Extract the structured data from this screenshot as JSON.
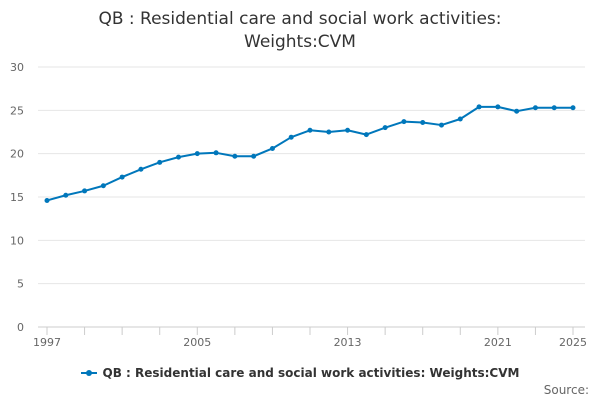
{
  "chart_data": {
    "type": "line",
    "title_lines": [
      "QB : Residential care and social work activities:",
      "Weights:CVM"
    ],
    "x": [
      1997,
      1998,
      1999,
      2000,
      2001,
      2002,
      2003,
      2004,
      2005,
      2006,
      2007,
      2008,
      2009,
      2010,
      2011,
      2012,
      2013,
      2014,
      2015,
      2016,
      2017,
      2018,
      2019,
      2020,
      2021,
      2022,
      2023,
      2024,
      2025
    ],
    "x_tick_labels": [
      "1997",
      "2005",
      "2013",
      "2021",
      "2025"
    ],
    "x_tick_values": [
      1997,
      2005,
      2013,
      2021,
      2025
    ],
    "series": [
      {
        "name": "QB : Residential care and social work activities: Weights:CVM",
        "color": "#0077bb",
        "values": [
          14.6,
          15.2,
          15.7,
          16.3,
          17.3,
          18.2,
          19.0,
          19.6,
          20.0,
          20.1,
          19.7,
          19.7,
          20.6,
          21.9,
          22.7,
          22.5,
          22.7,
          22.2,
          23.0,
          23.7,
          23.6,
          23.3,
          24.0,
          25.4,
          25.4,
          24.9,
          25.3,
          25.3,
          25.3
        ]
      }
    ],
    "y_ticks": [
      0,
      5,
      10,
      15,
      20,
      25,
      30
    ],
    "ylim": [
      0,
      30
    ],
    "xlim": [
      1997,
      2025
    ],
    "grid": true,
    "legend_position": "bottom",
    "xlabel": "",
    "ylabel": ""
  },
  "legend_label": "QB : Residential care and social work activities: Weights:CVM",
  "source_label": "Source:"
}
